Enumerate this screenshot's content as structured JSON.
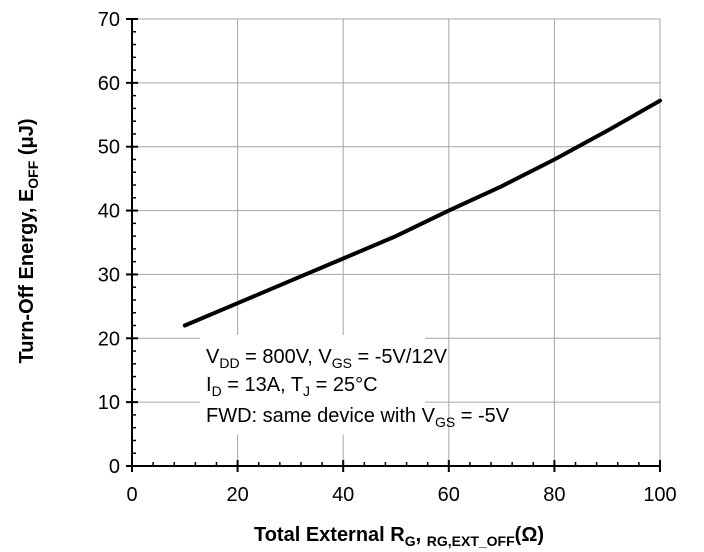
{
  "chart_data": {
    "type": "line",
    "xlabel": {
      "main": "Total External R",
      "sub1": "G",
      "sep": ", ",
      "sub2": "RG,EXT_OFF",
      "unit": "(Ω)"
    },
    "ylabel": {
      "main": "Turn-Off Energy, E",
      "sub": "OFF",
      "unit": " (μJ)"
    },
    "xlim": [
      0,
      100
    ],
    "ylim": [
      0,
      70
    ],
    "x_ticks": [
      0,
      20,
      40,
      60,
      80,
      100
    ],
    "y_ticks": [
      0,
      10,
      20,
      30,
      40,
      50,
      60,
      70
    ],
    "grid": true,
    "series": [
      {
        "color": "#000000",
        "x": [
          10,
          20,
          30,
          40,
          50,
          60,
          70,
          80,
          90,
          100
        ],
        "y": [
          22,
          25.5,
          29,
          32.5,
          36,
          40,
          43.8,
          48,
          52.5,
          57.2
        ]
      }
    ],
    "annotation": {
      "line1": {
        "a": "V",
        "a_sub": "DD",
        "b": " = 800V, V",
        "b_sub": "GS",
        "c": " = -5V/12V"
      },
      "line2": {
        "a": "I",
        "a_sub": "D",
        "b": " = 13A, T",
        "b_sub": "J",
        "c": " = 25°C"
      },
      "line3": {
        "a": "FWD: same device with V",
        "a_sub": "GS",
        "b": " = -5V"
      }
    }
  }
}
